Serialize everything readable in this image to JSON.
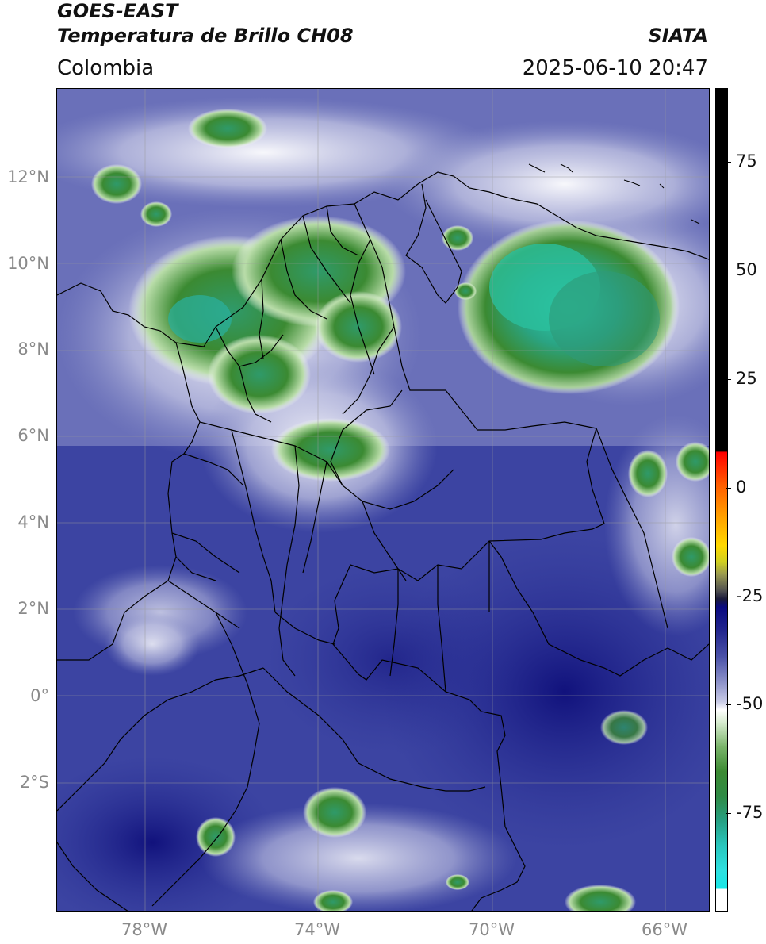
{
  "header": {
    "satellite": "GOES-EAST",
    "product": "Temperatura de Brillo CH08",
    "organization": "SIATA",
    "region": "Colombia",
    "datetime": "2025-06-10 20:47"
  },
  "map": {
    "lat_ticks": [
      "12°N",
      "10°N",
      "8°N",
      "6°N",
      "4°N",
      "2°N",
      "0°",
      "2°S"
    ],
    "lon_ticks": [
      "78°W",
      "74°W",
      "70°W",
      "66°W"
    ],
    "grid": true
  },
  "colorbar": {
    "tick_labels": [
      "75",
      "50",
      "25",
      "0",
      "-25",
      "-50",
      "-75"
    ],
    "colors": {
      "warm_top": "#000000",
      "red": "#ff0000",
      "yellow": "#ffd800",
      "dark_blue": "#0a0a80",
      "white": "#ffffff",
      "green": "#3b8a32",
      "cyan": "#19e6e6"
    }
  }
}
